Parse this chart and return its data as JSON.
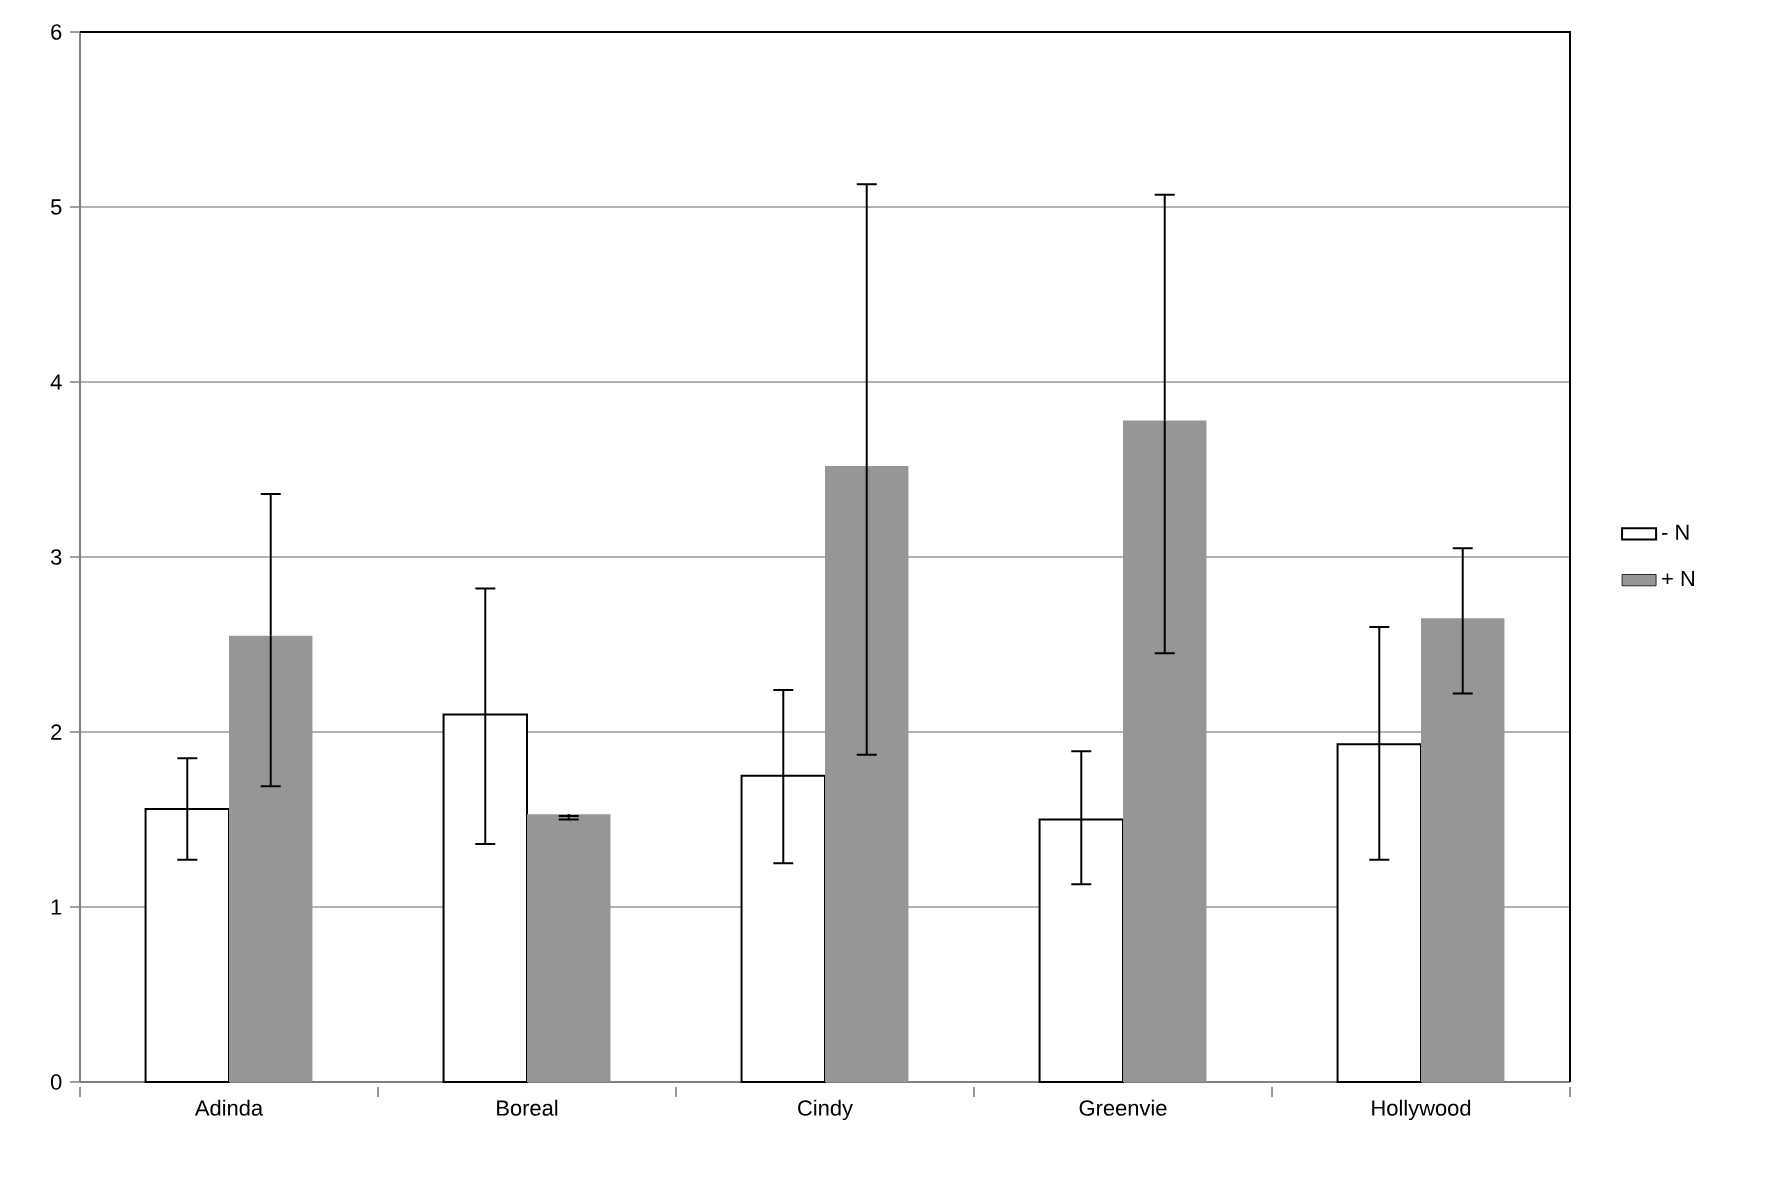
{
  "chart_data": {
    "type": "bar",
    "categories": [
      "Adinda",
      "Boreal",
      "Cindy",
      "Greenvie",
      "Hollywood"
    ],
    "series": [
      {
        "name": "- N",
        "color": "#ffffff",
        "values": [
          1.56,
          2.1,
          1.75,
          1.5,
          1.93
        ],
        "errors": [
          [
            1.27,
            1.85
          ],
          [
            1.36,
            2.82
          ],
          [
            1.25,
            2.24
          ],
          [
            1.13,
            1.89
          ],
          [
            1.27,
            2.6
          ]
        ]
      },
      {
        "name": "+ N",
        "color": "#969696",
        "values": [
          2.55,
          1.53,
          3.52,
          3.78,
          2.65
        ],
        "errors": [
          [
            1.69,
            3.36
          ],
          [
            1.5,
            1.52
          ],
          [
            1.87,
            5.13
          ],
          [
            2.45,
            5.07
          ],
          [
            2.22,
            3.05
          ]
        ]
      }
    ],
    "ylim": [
      0,
      6
    ],
    "yticks": [
      0,
      1,
      2,
      3,
      4,
      5,
      6
    ],
    "grid": "y",
    "legend": "right"
  }
}
